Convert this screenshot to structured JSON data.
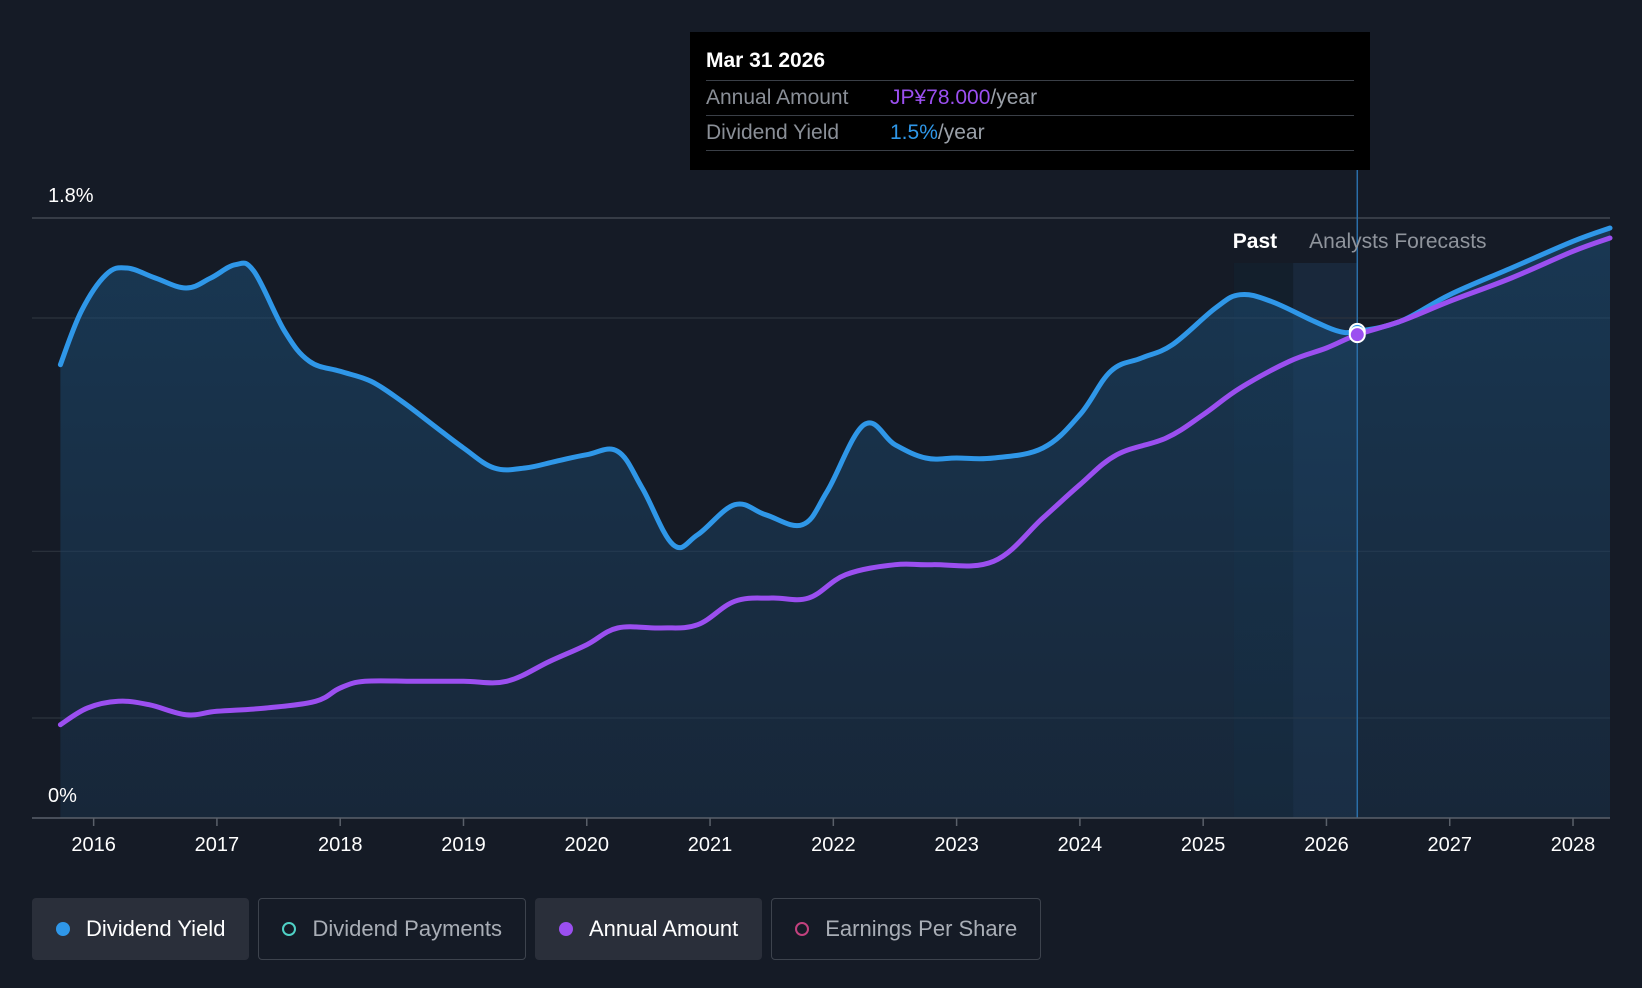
{
  "tooltip": {
    "date": "Mar 31 2026",
    "rows": [
      {
        "label": "Annual Amount",
        "value": "JP¥78.000",
        "suffix": "/year"
      },
      {
        "label": "Dividend Yield",
        "value": "1.5%",
        "suffix": "/year"
      }
    ]
  },
  "colors": {
    "background": "#151b26",
    "yield": "#2f97e8",
    "amount": "#9b4ff0",
    "payments": "#4fd1c5",
    "eps": "#c2417e"
  },
  "legend": [
    {
      "label": "Dividend Yield",
      "active": true,
      "color": "#2f97e8"
    },
    {
      "label": "Dividend Payments",
      "active": false,
      "color": "#4fd1c5"
    },
    {
      "label": "Annual Amount",
      "active": true,
      "color": "#9b4ff0"
    },
    {
      "label": "Earnings Per Share",
      "active": false,
      "color": "#c2417e"
    }
  ],
  "chart_data": {
    "type": "line",
    "title": "",
    "y_axis": {
      "min": 0,
      "max": 1.8,
      "tick_labels": [
        "1.8%",
        "0%"
      ],
      "grid_values": [
        0.3,
        0.8,
        1.5
      ]
    },
    "x_axis": {
      "min": 2015.5,
      "max": 2028.3,
      "ticks": [
        2016,
        2017,
        2018,
        2019,
        2020,
        2021,
        2022,
        2023,
        2024,
        2025,
        2026,
        2027,
        2028
      ]
    },
    "regions": {
      "past_label": "Past",
      "forecast_label": "Analysts Forecasts",
      "past_band_start": 2025.25,
      "past_band_end": 2025.73,
      "forecast_band_end": 2026.25
    },
    "highlight_x": 2026.25,
    "series": [
      {
        "name": "Dividend Yield",
        "unit": "%",
        "points": [
          [
            2015.73,
            1.36
          ],
          [
            2015.9,
            1.52
          ],
          [
            2016.1,
            1.63
          ],
          [
            2016.27,
            1.65
          ],
          [
            2016.5,
            1.62
          ],
          [
            2016.75,
            1.59
          ],
          [
            2016.95,
            1.62
          ],
          [
            2017.15,
            1.66
          ],
          [
            2017.3,
            1.64
          ],
          [
            2017.55,
            1.46
          ],
          [
            2017.75,
            1.37
          ],
          [
            2018.0,
            1.34
          ],
          [
            2018.25,
            1.31
          ],
          [
            2018.5,
            1.25
          ],
          [
            2018.75,
            1.18
          ],
          [
            2019.0,
            1.11
          ],
          [
            2019.25,
            1.05
          ],
          [
            2019.5,
            1.05
          ],
          [
            2019.75,
            1.07
          ],
          [
            2020.0,
            1.09
          ],
          [
            2020.25,
            1.1
          ],
          [
            2020.45,
            0.99
          ],
          [
            2020.7,
            0.82
          ],
          [
            2020.9,
            0.85
          ],
          [
            2021.2,
            0.94
          ],
          [
            2021.45,
            0.91
          ],
          [
            2021.75,
            0.88
          ],
          [
            2021.95,
            0.98
          ],
          [
            2022.25,
            1.18
          ],
          [
            2022.5,
            1.12
          ],
          [
            2022.75,
            1.08
          ],
          [
            2023.0,
            1.08
          ],
          [
            2023.3,
            1.08
          ],
          [
            2023.7,
            1.11
          ],
          [
            2024.0,
            1.21
          ],
          [
            2024.25,
            1.34
          ],
          [
            2024.5,
            1.38
          ],
          [
            2024.75,
            1.42
          ],
          [
            2025.1,
            1.53
          ],
          [
            2025.3,
            1.57
          ],
          [
            2025.55,
            1.55
          ],
          [
            2025.9,
            1.49
          ],
          [
            2026.1,
            1.46
          ],
          [
            2026.25,
            1.46
          ],
          [
            2026.6,
            1.49
          ],
          [
            2027.0,
            1.57
          ],
          [
            2027.5,
            1.65
          ],
          [
            2028.0,
            1.73
          ],
          [
            2028.3,
            1.77
          ]
        ]
      },
      {
        "name": "Annual Amount",
        "unit": "JP¥",
        "points": [
          [
            2015.73,
            0.28
          ],
          [
            2015.95,
            0.33
          ],
          [
            2016.2,
            0.35
          ],
          [
            2016.45,
            0.34
          ],
          [
            2016.75,
            0.31
          ],
          [
            2017.0,
            0.32
          ],
          [
            2017.4,
            0.33
          ],
          [
            2017.8,
            0.35
          ],
          [
            2018.0,
            0.39
          ],
          [
            2018.2,
            0.41
          ],
          [
            2018.6,
            0.41
          ],
          [
            2019.0,
            0.41
          ],
          [
            2019.35,
            0.41
          ],
          [
            2019.7,
            0.47
          ],
          [
            2020.0,
            0.52
          ],
          [
            2020.25,
            0.57
          ],
          [
            2020.6,
            0.57
          ],
          [
            2020.9,
            0.58
          ],
          [
            2021.2,
            0.65
          ],
          [
            2021.5,
            0.66
          ],
          [
            2021.8,
            0.66
          ],
          [
            2022.1,
            0.73
          ],
          [
            2022.5,
            0.76
          ],
          [
            2022.8,
            0.76
          ],
          [
            2023.3,
            0.77
          ],
          [
            2023.7,
            0.9
          ],
          [
            2024.0,
            1.0
          ],
          [
            2024.3,
            1.09
          ],
          [
            2024.7,
            1.14
          ],
          [
            2025.0,
            1.21
          ],
          [
            2025.3,
            1.29
          ],
          [
            2025.7,
            1.37
          ],
          [
            2026.0,
            1.41
          ],
          [
            2026.25,
            1.45
          ],
          [
            2026.6,
            1.49
          ],
          [
            2027.0,
            1.55
          ],
          [
            2027.5,
            1.62
          ],
          [
            2028.0,
            1.7
          ],
          [
            2028.3,
            1.74
          ]
        ]
      }
    ]
  }
}
